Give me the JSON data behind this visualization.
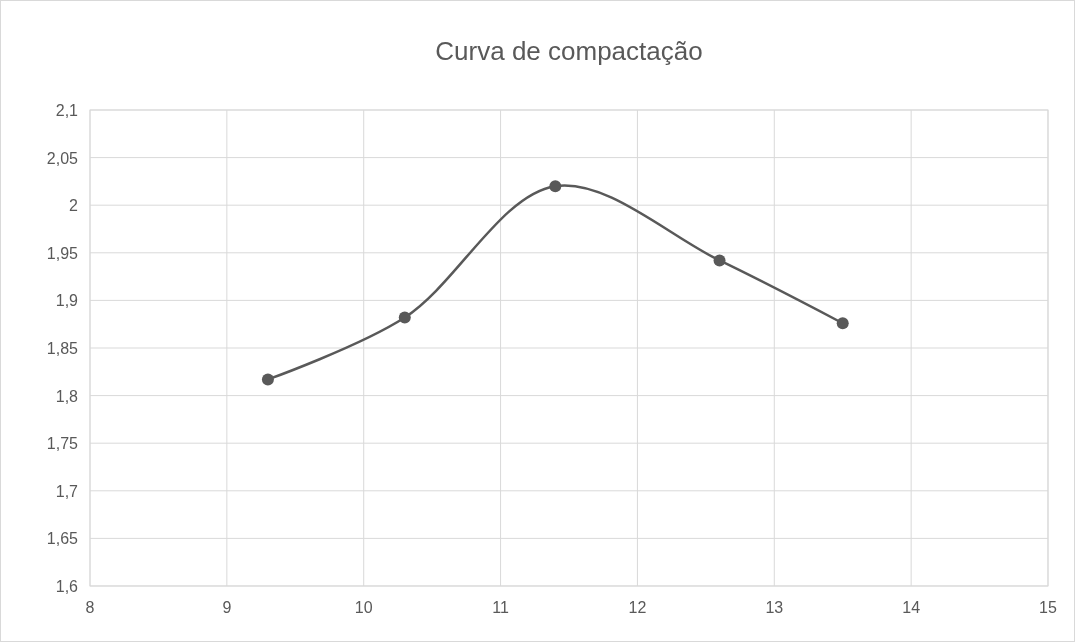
{
  "chart_data": {
    "type": "line",
    "title": "Curva de compactação",
    "x": [
      9.3,
      10.3,
      11.4,
      12.6,
      13.5
    ],
    "series": [
      {
        "color": "#595959",
        "values": [
          1.817,
          1.882,
          2.02,
          1.942,
          1.876
        ]
      }
    ],
    "xlim": [
      8,
      15
    ],
    "xticks": [
      8,
      9,
      10,
      11,
      12,
      13,
      14,
      15
    ],
    "ylim": [
      1.6,
      2.1
    ],
    "yticks": [
      {
        "value": 1.6,
        "label": "1,6"
      },
      {
        "value": 1.65,
        "label": "1,65"
      },
      {
        "value": 1.7,
        "label": "1,7"
      },
      {
        "value": 1.75,
        "label": "1,75"
      },
      {
        "value": 1.8,
        "label": "1,8"
      },
      {
        "value": 1.85,
        "label": "1,85"
      },
      {
        "value": 1.9,
        "label": "1,9"
      },
      {
        "value": 1.95,
        "label": "1,95"
      },
      {
        "value": 2,
        "label": "2"
      },
      {
        "value": 2.05,
        "label": "2,05"
      },
      {
        "value": 2.1,
        "label": "2,1"
      }
    ],
    "grid": true,
    "marker": "circle",
    "line_style": "solid"
  }
}
